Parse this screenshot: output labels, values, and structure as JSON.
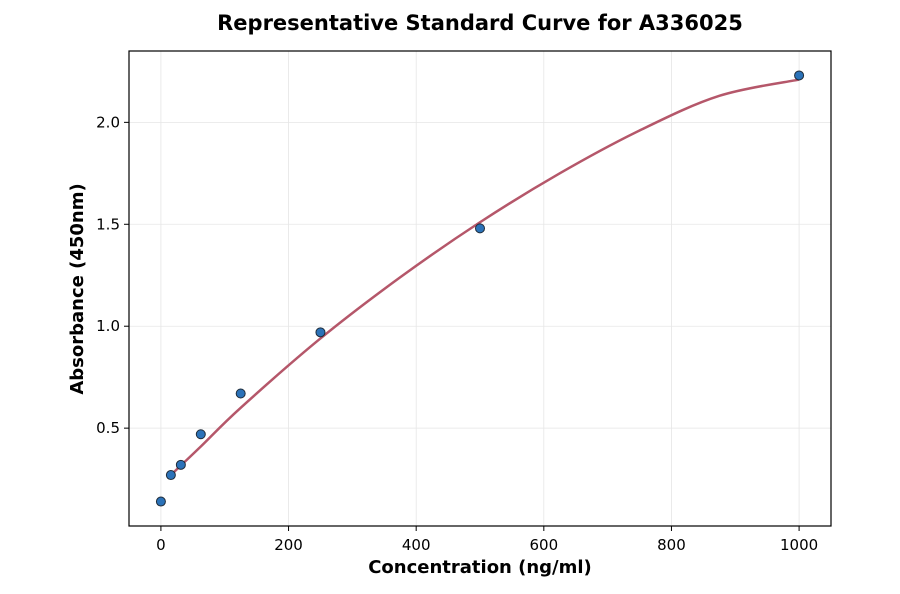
{
  "chart_data": {
    "type": "scatter",
    "title": "Representative Standard Curve for A336025",
    "xlabel": "Concentration (ng/ml)",
    "ylabel": "Absorbance (450nm)",
    "xlim": [
      -50,
      1050
    ],
    "ylim": [
      0.02,
      2.35
    ],
    "xticks": [
      0,
      200,
      400,
      600,
      800,
      1000
    ],
    "yticks": [
      0.5,
      1.0,
      1.5,
      2.0
    ],
    "xtick_labels": [
      "0",
      "200",
      "400",
      "600",
      "800",
      "1000"
    ],
    "ytick_labels": [
      "0.5",
      "1.0",
      "1.5",
      "2.0"
    ],
    "grid": true,
    "points": {
      "x": [
        0,
        15.6,
        31.25,
        62.5,
        125,
        250,
        500,
        1000
      ],
      "y": [
        0.14,
        0.27,
        0.32,
        0.47,
        0.67,
        0.97,
        1.48,
        2.23
      ]
    },
    "fit_curve": {
      "x": [
        15.6,
        62.5,
        125,
        250,
        375,
        500,
        625,
        750,
        875,
        1000
      ],
      "y": [
        0.27,
        0.41,
        0.6,
        0.94,
        1.24,
        1.51,
        1.75,
        1.96,
        2.13,
        2.21
      ]
    },
    "colors": {
      "curve": "#b5576a",
      "point": "#2b72b8"
    }
  }
}
